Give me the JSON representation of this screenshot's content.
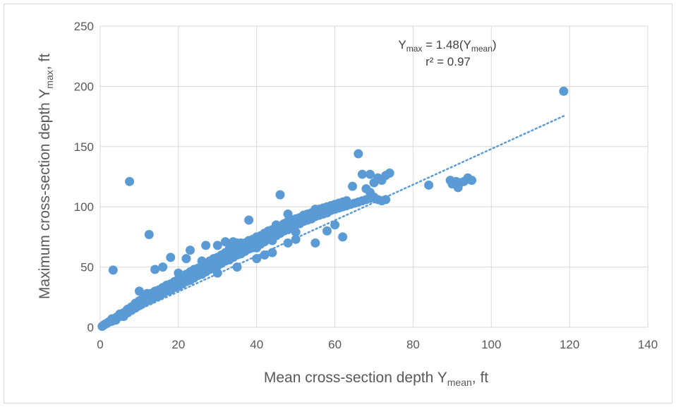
{
  "chart_data": {
    "type": "scatter",
    "title": "",
    "xlabel": {
      "main": "Mean cross-section depth Y",
      "sub": "mean",
      "suffix": ", ft"
    },
    "ylabel": {
      "main": "Maximum cross-section depth Y",
      "sub": "max",
      "suffix": ", ft"
    },
    "xlim": [
      0,
      140
    ],
    "ylim": [
      0,
      250
    ],
    "xticks": [
      "0",
      "20",
      "40",
      "60",
      "80",
      "100",
      "120",
      "140"
    ],
    "yticks": [
      "0",
      "50",
      "100",
      "150",
      "200",
      "250"
    ],
    "grid": true,
    "legend": "none",
    "marker_color": "#5b9bd5",
    "trendline": {
      "style": "dotted",
      "color": "#5b9bd5",
      "slope": 1.48,
      "x_range": [
        0,
        118.5
      ],
      "equation": {
        "y": "Y",
        "y_sub": "max",
        "eq": " = 1.48(Y",
        "x_sub": "mean",
        "close": ")"
      },
      "r2": "r² = 0.97"
    },
    "series": [
      {
        "points": [
          [
            0.5,
            0.8
          ],
          [
            0.8,
            1.5
          ],
          [
            1,
            2
          ],
          [
            1.2,
            2.5
          ],
          [
            1.5,
            3
          ],
          [
            1.8,
            3.5
          ],
          [
            2,
            4
          ],
          [
            2.2,
            4.5
          ],
          [
            2.5,
            5
          ],
          [
            2.8,
            6
          ],
          [
            3,
            5
          ],
          [
            3,
            7
          ],
          [
            3.5,
            6.5
          ],
          [
            4,
            8
          ],
          [
            4,
            6
          ],
          [
            4.5,
            9
          ],
          [
            5,
            9
          ],
          [
            5,
            11
          ],
          [
            5.5,
            10
          ],
          [
            6,
            12
          ],
          [
            6,
            9
          ],
          [
            6.5,
            13
          ],
          [
            7,
            12
          ],
          [
            7,
            15
          ],
          [
            7.5,
            14
          ],
          [
            8,
            14
          ],
          [
            8,
            17
          ],
          [
            8.5,
            16
          ],
          [
            9,
            16
          ],
          [
            9,
            20
          ],
          [
            9.5,
            18
          ],
          [
            10,
            18
          ],
          [
            10,
            22
          ],
          [
            10.5,
            20
          ],
          [
            11,
            20
          ],
          [
            11,
            24
          ],
          [
            11.5,
            21
          ],
          [
            12,
            22
          ],
          [
            12,
            26
          ],
          [
            12.5,
            24
          ],
          [
            13,
            23
          ],
          [
            13,
            28
          ],
          [
            13.5,
            26
          ],
          [
            14,
            25
          ],
          [
            14,
            30
          ],
          [
            14.5,
            27
          ],
          [
            15,
            26
          ],
          [
            15,
            31
          ],
          [
            15.5,
            29
          ],
          [
            16,
            28
          ],
          [
            16,
            33
          ],
          [
            16.5,
            30
          ],
          [
            17,
            30
          ],
          [
            17,
            35
          ],
          [
            17.5,
            33
          ],
          [
            18,
            31
          ],
          [
            18,
            36
          ],
          [
            18.5,
            34
          ],
          [
            19,
            33
          ],
          [
            19,
            38
          ],
          [
            19.5,
            36
          ],
          [
            20,
            34
          ],
          [
            20,
            40
          ],
          [
            20.5,
            38
          ],
          [
            21,
            36
          ],
          [
            21,
            42
          ],
          [
            21.5,
            39
          ],
          [
            22,
            38
          ],
          [
            22,
            44
          ],
          [
            22.5,
            41
          ],
          [
            23,
            39
          ],
          [
            23,
            46
          ],
          [
            23.5,
            43
          ],
          [
            24,
            41
          ],
          [
            24,
            48
          ],
          [
            24.5,
            44
          ],
          [
            25,
            43
          ],
          [
            25,
            49
          ],
          [
            25.5,
            46
          ],
          [
            26,
            44
          ],
          [
            26,
            51
          ],
          [
            26.5,
            48
          ],
          [
            27,
            46
          ],
          [
            27,
            53
          ],
          [
            27.5,
            50
          ],
          [
            28,
            48
          ],
          [
            28,
            55
          ],
          [
            28.5,
            52
          ],
          [
            29,
            50
          ],
          [
            29,
            57
          ],
          [
            29.5,
            53
          ],
          [
            30,
            51
          ],
          [
            30,
            58
          ],
          [
            30.5,
            55
          ],
          [
            31,
            53
          ],
          [
            31,
            60
          ],
          [
            31.5,
            56
          ],
          [
            32,
            55
          ],
          [
            32,
            62
          ],
          [
            32.5,
            58
          ],
          [
            33,
            56
          ],
          [
            33,
            65
          ],
          [
            33.5,
            60
          ],
          [
            34,
            58
          ],
          [
            34,
            68
          ],
          [
            34.5,
            62
          ],
          [
            35,
            60
          ],
          [
            35,
            70
          ],
          [
            35.5,
            64
          ],
          [
            36,
            61
          ],
          [
            36,
            69
          ],
          [
            36.5,
            66
          ],
          [
            37,
            63
          ],
          [
            37,
            70
          ],
          [
            37.5,
            67
          ],
          [
            38,
            65
          ],
          [
            38,
            72
          ],
          [
            38.5,
            68
          ],
          [
            39,
            66
          ],
          [
            39,
            73
          ],
          [
            39.5,
            69
          ],
          [
            40,
            68
          ],
          [
            40,
            75
          ],
          [
            40.5,
            71
          ],
          [
            41,
            69
          ],
          [
            41,
            76
          ],
          [
            41.5,
            72
          ],
          [
            42,
            71
          ],
          [
            42,
            78
          ],
          [
            42.5,
            74
          ],
          [
            43,
            73
          ],
          [
            43,
            80
          ],
          [
            43.5,
            76
          ],
          [
            44,
            74
          ],
          [
            44,
            81
          ],
          [
            44.5,
            77
          ],
          [
            45,
            76
          ],
          [
            45,
            82
          ],
          [
            45.5,
            78
          ],
          [
            46,
            78
          ],
          [
            46,
            84
          ],
          [
            46.5,
            80
          ],
          [
            47,
            80
          ],
          [
            47,
            86
          ],
          [
            47.5,
            82
          ],
          [
            48,
            81
          ],
          [
            48,
            88
          ],
          [
            48.5,
            84
          ],
          [
            49,
            83
          ],
          [
            49,
            89
          ],
          [
            49.5,
            85
          ],
          [
            50,
            85
          ],
          [
            50,
            90
          ],
          [
            50.5,
            86
          ],
          [
            51,
            86
          ],
          [
            51,
            91
          ],
          [
            51.5,
            88
          ],
          [
            52,
            88
          ],
          [
            52,
            93
          ],
          [
            52.5,
            89
          ],
          [
            53,
            89
          ],
          [
            53,
            94
          ],
          [
            54,
            90
          ],
          [
            54,
            95
          ],
          [
            55,
            92
          ],
          [
            55,
            97
          ],
          [
            56,
            93
          ],
          [
            56,
            98
          ],
          [
            57,
            94
          ],
          [
            57,
            99
          ],
          [
            58,
            95
          ],
          [
            58,
            100
          ],
          [
            59,
            97
          ],
          [
            59,
            101
          ],
          [
            60,
            98
          ],
          [
            60,
            102
          ],
          [
            61,
            99
          ],
          [
            61,
            103
          ],
          [
            62,
            100
          ],
          [
            62,
            104
          ],
          [
            63,
            101
          ],
          [
            63,
            105
          ],
          [
            64,
            102
          ],
          [
            65,
            103
          ],
          [
            66,
            104
          ],
          [
            67,
            105
          ],
          [
            68,
            106
          ],
          [
            69,
            107
          ],
          [
            70,
            108
          ],
          [
            71,
            106
          ],
          [
            72,
            105
          ],
          [
            73,
            106
          ],
          [
            66,
            144
          ],
          [
            64.5,
            117
          ],
          [
            67,
            127
          ],
          [
            69,
            127
          ],
          [
            70,
            120
          ],
          [
            71,
            124
          ],
          [
            72,
            122
          ],
          [
            73,
            126
          ],
          [
            74,
            128
          ],
          [
            68,
            115
          ],
          [
            69,
            112
          ],
          [
            3.3,
            47.5
          ],
          [
            7.5,
            121
          ],
          [
            12.5,
            77
          ],
          [
            38,
            89
          ],
          [
            46,
            110
          ],
          [
            48,
            94
          ],
          [
            45,
            85
          ],
          [
            55,
            98
          ],
          [
            14,
            48
          ],
          [
            16,
            50
          ],
          [
            18,
            58
          ],
          [
            22,
            57
          ],
          [
            23,
            64
          ],
          [
            27,
            68
          ],
          [
            30,
            68
          ],
          [
            32,
            71
          ],
          [
            34,
            71
          ],
          [
            36,
            70
          ],
          [
            40,
            66
          ],
          [
            44,
            72
          ],
          [
            44,
            62
          ],
          [
            52,
            88
          ],
          [
            50,
            79
          ],
          [
            58,
            80
          ],
          [
            60,
            85
          ],
          [
            62,
            75
          ],
          [
            55,
            70
          ],
          [
            48,
            70
          ],
          [
            10,
            30
          ],
          [
            12,
            28
          ],
          [
            20,
            45
          ],
          [
            26,
            55
          ],
          [
            30,
            45
          ],
          [
            35,
            50
          ],
          [
            40,
            57
          ],
          [
            42,
            60
          ],
          [
            50,
            73
          ],
          [
            84,
            118
          ],
          [
            89.5,
            122
          ],
          [
            90,
            119
          ],
          [
            91,
            121
          ],
          [
            91.5,
            116
          ],
          [
            92,
            120
          ],
          [
            93,
            121
          ],
          [
            94,
            124
          ],
          [
            95,
            122
          ],
          [
            118.5,
            196
          ]
        ]
      }
    ]
  }
}
